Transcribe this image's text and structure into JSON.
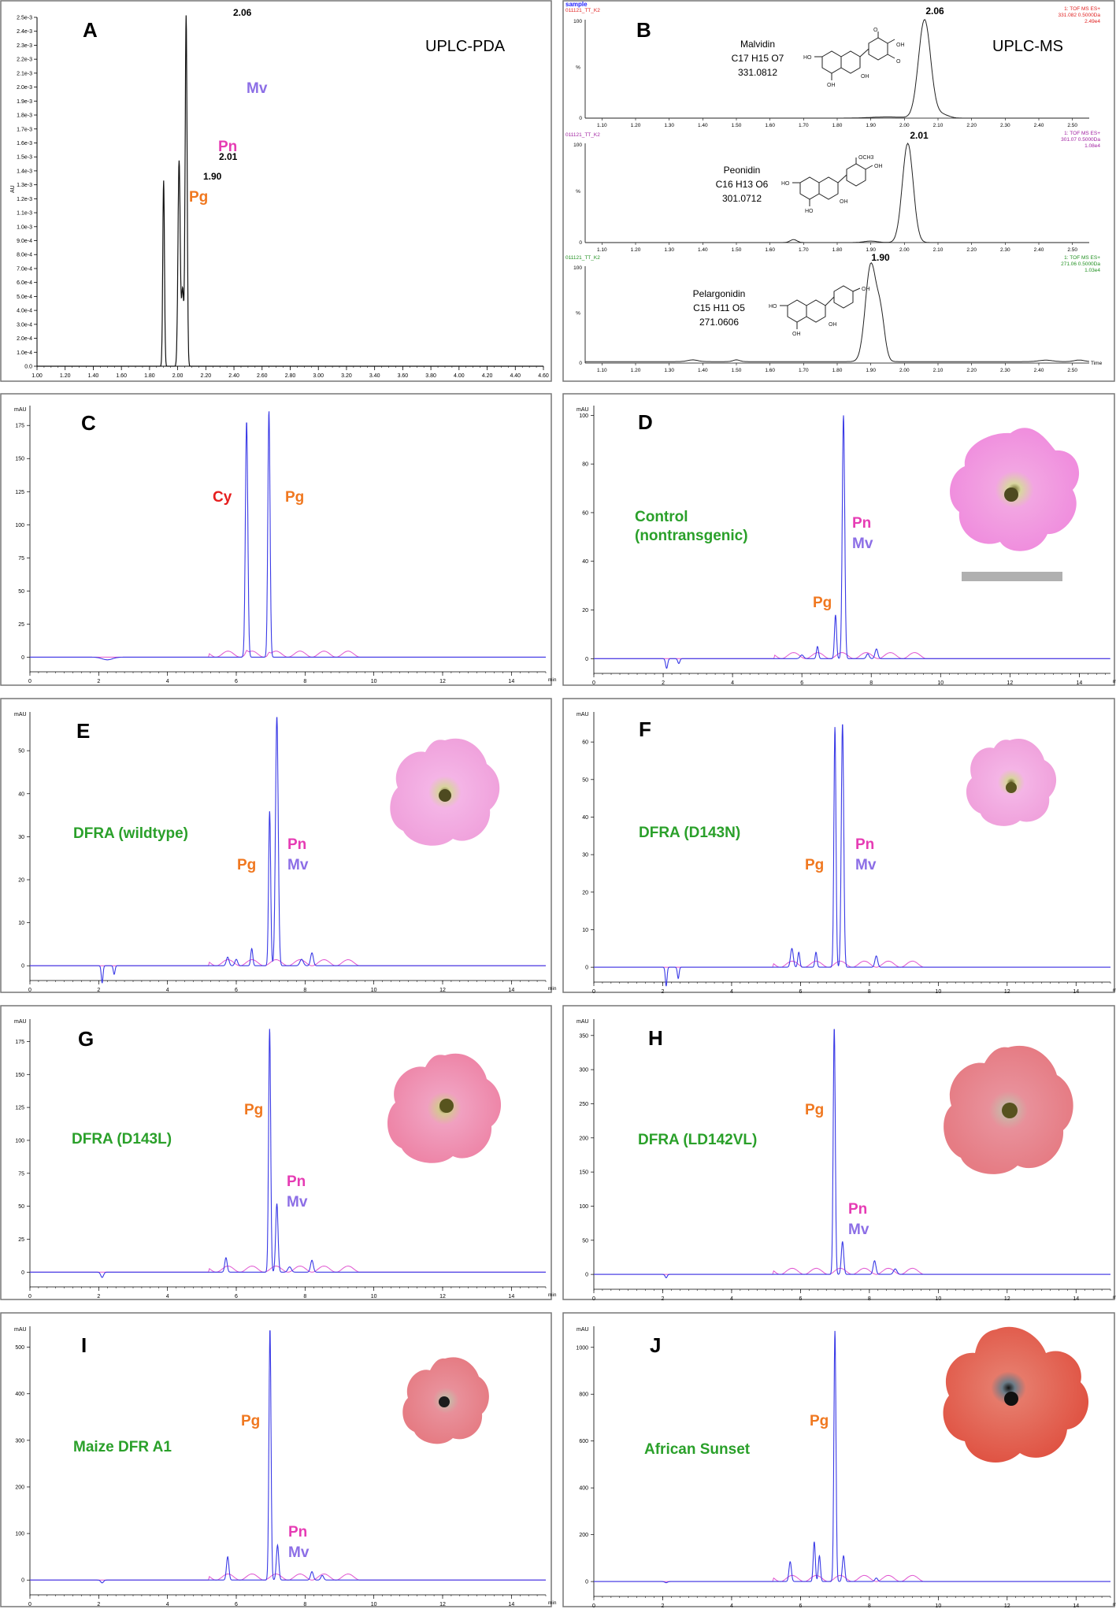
{
  "colors": {
    "trace": "#3a3ae6",
    "trace_pink": "#e055d0",
    "pg": "#f07820",
    "pn": "#e63cb4",
    "mv": "#8c6ee6",
    "cy": "#e61e1e",
    "green": "#2aa02a",
    "ms_red": "#e02020",
    "ms_purple": "#a020a0",
    "ms_green": "#209020"
  },
  "panelA": {
    "letter": "A",
    "method": "UPLC-PDA",
    "ylabel": "AU",
    "ytick_labels": [
      "0.0",
      "1.0e-4",
      "2.0e-4",
      "3.0e-4",
      "4.0e-4",
      "5.0e-4",
      "6.0e-4",
      "7.0e-4",
      "8.0e-4",
      "9.0e-4",
      "1.0e-3",
      "1.1e-3",
      "1.2e-3",
      "1.3e-3",
      "1.4e-3",
      "1.5e-3",
      "1.6e-3",
      "1.7e-3",
      "1.8e-3",
      "1.9e-3",
      "2.0e-3",
      "2.1e-3",
      "2.2e-3",
      "2.3e-3",
      "2.4e-3",
      "2.5e-3"
    ],
    "xtick_labels": [
      "1.00",
      "1.20",
      "1.40",
      "1.60",
      "1.80",
      "2.00",
      "2.20",
      "2.40",
      "2.60",
      "2.80",
      "3.00",
      "3.20",
      "3.40",
      "3.60",
      "3.80",
      "4.00",
      "4.20",
      "4.40",
      "4.60"
    ],
    "peak_labels": [
      "1.90",
      "2.01",
      "2.06"
    ],
    "pg": "Pg",
    "pn": "Pn",
    "mv": "Mv"
  },
  "panelB": {
    "letter": "B",
    "method": "UPLC-MS",
    "sample_label": "sample",
    "file_label": "011121_TT_K2",
    "pct_label": "%",
    "time_label": "Time",
    "xtick_labels": [
      "1.10",
      "1.20",
      "1.30",
      "1.40",
      "1.50",
      "1.60",
      "1.70",
      "1.80",
      "1.90",
      "2.00",
      "2.10",
      "2.20",
      "2.30",
      "2.40",
      "2.50"
    ],
    "subplots": [
      {
        "compound": "Malvidin",
        "formula": "C17 H15 O7",
        "mass": "331.0812",
        "peak": "2.06",
        "info1": "1: TOF MS ES+",
        "info2": "331.082 0.5000Da",
        "info3": "2.49e4"
      },
      {
        "compound": "Peonidin",
        "formula": "C16 H13 O6",
        "mass": "301.0712",
        "peak": "2.01",
        "info1": "1: TOF MS ES+",
        "info2": "301.07 0.5000Da",
        "info3": "1.08e4"
      },
      {
        "compound": "Pelargonidin",
        "formula": "C15 H11 O5",
        "mass": "271.0606",
        "peak": "1.90",
        "info1": "1: TOF MS ES+",
        "info2": "271.06 0.5000Da",
        "info3": "1.03e4"
      }
    ]
  },
  "hplc_common": {
    "unit": "mAU",
    "xunit": "min",
    "xtick_labels": [
      "0",
      "2",
      "4",
      "6",
      "8",
      "10",
      "12",
      "14"
    ]
  },
  "panels": [
    {
      "letter": "C",
      "ytick_labels": [
        "0",
        "25",
        "50",
        "75",
        "100",
        "125",
        "150",
        "175"
      ],
      "labels": {
        "cy": "Cy",
        "pg": "Pg"
      }
    },
    {
      "letter": "D",
      "ytick_labels": [
        "0",
        "20",
        "40",
        "60",
        "80",
        "100"
      ],
      "name1": "Control",
      "name2": "(nontransgenic)",
      "labels": {
        "pg": "Pg",
        "pn": "Pn",
        "mv": "Mv"
      }
    },
    {
      "letter": "E",
      "ytick_labels": [
        "0",
        "10",
        "20",
        "30",
        "40",
        "50"
      ],
      "name1": "DFRA (wildtype)",
      "labels": {
        "pg": "Pg",
        "pn": "Pn",
        "mv": "Mv"
      }
    },
    {
      "letter": "F",
      "ytick_labels": [
        "0",
        "10",
        "20",
        "30",
        "40",
        "50",
        "60"
      ],
      "name1": "DFRA (D143N)",
      "labels": {
        "pg": "Pg",
        "pn": "Pn",
        "mv": "Mv"
      }
    },
    {
      "letter": "G",
      "ytick_labels": [
        "0",
        "25",
        "50",
        "75",
        "100",
        "125",
        "150",
        "175"
      ],
      "name1": "DFRA (D143L)",
      "labels": {
        "pg": "Pg",
        "pn": "Pn",
        "mv": "Mv"
      }
    },
    {
      "letter": "H",
      "ytick_labels": [
        "0",
        "50",
        "100",
        "150",
        "200",
        "250",
        "300",
        "350"
      ],
      "name1": "DFRA (LD142VL)",
      "labels": {
        "pg": "Pg",
        "pn": "Pn",
        "mv": "Mv"
      }
    },
    {
      "letter": "I",
      "ytick_labels": [
        "0",
        "100",
        "200",
        "300",
        "400",
        "500"
      ],
      "name1": "Maize DFR A1",
      "labels": {
        "pg": "Pg",
        "pn": "Pn",
        "mv": "Mv"
      }
    },
    {
      "letter": "J",
      "ytick_labels": [
        "0",
        "200",
        "400",
        "600",
        "800",
        "1000"
      ],
      "name1": "African Sunset",
      "labels": {
        "pg": "Pg"
      }
    }
  ],
  "chart_data": [
    {
      "type": "line",
      "panel": "A",
      "x_range": [
        1.0,
        4.6
      ],
      "ylim": [
        0,
        0.0025
      ],
      "peaks": [
        {
          "x": 1.9,
          "y": 0.00133
        },
        {
          "x": 2.01,
          "y": 0.00147
        },
        {
          "x": 2.06,
          "y": 0.00251
        }
      ]
    },
    {
      "type": "line",
      "panel": "B",
      "x_range": [
        1.05,
        2.55
      ],
      "ylim": [
        0,
        100
      ],
      "series": [
        {
          "peak_x": 2.06,
          "peak_y": 100
        },
        {
          "peak_x": 2.01,
          "peak_y": 100
        },
        {
          "peak_x": 1.9,
          "peak_y": 100
        }
      ]
    },
    {
      "type": "line",
      "panel": "C",
      "x_range": [
        0,
        15
      ],
      "ylim": [
        0,
        190
      ],
      "peaks": [
        {
          "x": 6.3,
          "y": 178
        },
        {
          "x": 6.95,
          "y": 186
        }
      ]
    },
    {
      "type": "line",
      "panel": "D",
      "x_range": [
        0,
        14.9
      ],
      "ylim": [
        0,
        104
      ],
      "peaks": [
        {
          "x": 6.97,
          "y": 18
        },
        {
          "x": 7.2,
          "y": 100
        }
      ]
    },
    {
      "type": "line",
      "panel": "E",
      "x_range": [
        0,
        15
      ],
      "ylim": [
        0,
        59
      ],
      "peaks": [
        {
          "x": 6.97,
          "y": 36
        },
        {
          "x": 7.18,
          "y": 58
        }
      ]
    },
    {
      "type": "line",
      "panel": "F",
      "x_range": [
        0,
        15
      ],
      "ylim": [
        0,
        68
      ],
      "peaks": [
        {
          "x": 7.0,
          "y": 64
        },
        {
          "x": 7.22,
          "y": 65
        }
      ]
    },
    {
      "type": "line",
      "panel": "G",
      "x_range": [
        0,
        15
      ],
      "ylim": [
        0,
        192
      ],
      "peaks": [
        {
          "x": 6.97,
          "y": 185
        },
        {
          "x": 7.18,
          "y": 52
        }
      ]
    },
    {
      "type": "line",
      "panel": "H",
      "x_range": [
        0,
        15
      ],
      "ylim": [
        0,
        374
      ],
      "peaks": [
        {
          "x": 6.98,
          "y": 362
        },
        {
          "x": 7.22,
          "y": 48
        }
      ]
    },
    {
      "type": "line",
      "panel": "I",
      "x_range": [
        0,
        15
      ],
      "ylim": [
        0,
        545
      ],
      "peaks": [
        {
          "x": 6.98,
          "y": 540
        },
        {
          "x": 7.2,
          "y": 75
        }
      ]
    },
    {
      "type": "line",
      "panel": "J",
      "x_range": [
        0,
        15
      ],
      "ylim": [
        0,
        1090
      ],
      "peaks": [
        {
          "x": 7.0,
          "y": 1070
        },
        {
          "x": 6.4,
          "y": 170
        }
      ]
    }
  ]
}
